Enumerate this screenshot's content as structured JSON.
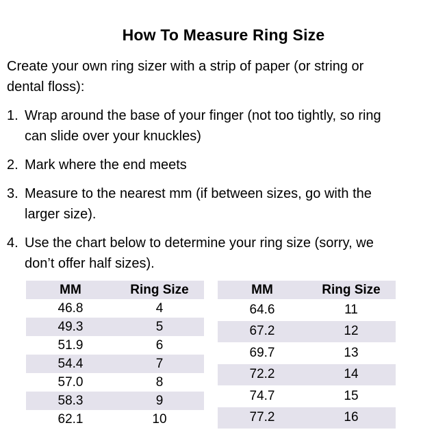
{
  "title": "How To Measure Ring Size",
  "intro": "Create your own ring sizer with a strip of paper (or string or\ndental floss):",
  "steps": [
    {
      "num": "1.",
      "text": "Wrap around the base of your finger (not too tightly, so ring\ncan slide over your knuckles)"
    },
    {
      "num": "2.",
      "text": "Mark where the end meets"
    },
    {
      "num": "3.",
      "text": "Measure to the nearest mm (if between sizes, go with the\nlarger size)."
    },
    {
      "num": "4.",
      "text": "Use the chart below to determine your ring size (sorry, we\ndon’t offer half sizes)."
    }
  ],
  "tables": [
    {
      "headers": [
        "MM",
        "Ring Size"
      ],
      "rows": [
        [
          "46.8",
          "4"
        ],
        [
          "49.3",
          "5"
        ],
        [
          "51.9",
          "6"
        ],
        [
          "54.4",
          "7"
        ],
        [
          "57.0",
          "8"
        ],
        [
          "58.3",
          "9"
        ],
        [
          "62.1",
          "10"
        ]
      ]
    },
    {
      "headers": [
        "MM",
        "Ring Size"
      ],
      "rows": [
        [
          "64.6",
          "11"
        ],
        [
          "67.2",
          "12"
        ],
        [
          "69.7",
          "13"
        ],
        [
          "72.2",
          "14"
        ],
        [
          "74.7",
          "15"
        ],
        [
          "77.2",
          "16"
        ]
      ]
    }
  ],
  "colors": {
    "stripe": "#e4e2ec",
    "text": "#000000",
    "background": "#ffffff"
  }
}
